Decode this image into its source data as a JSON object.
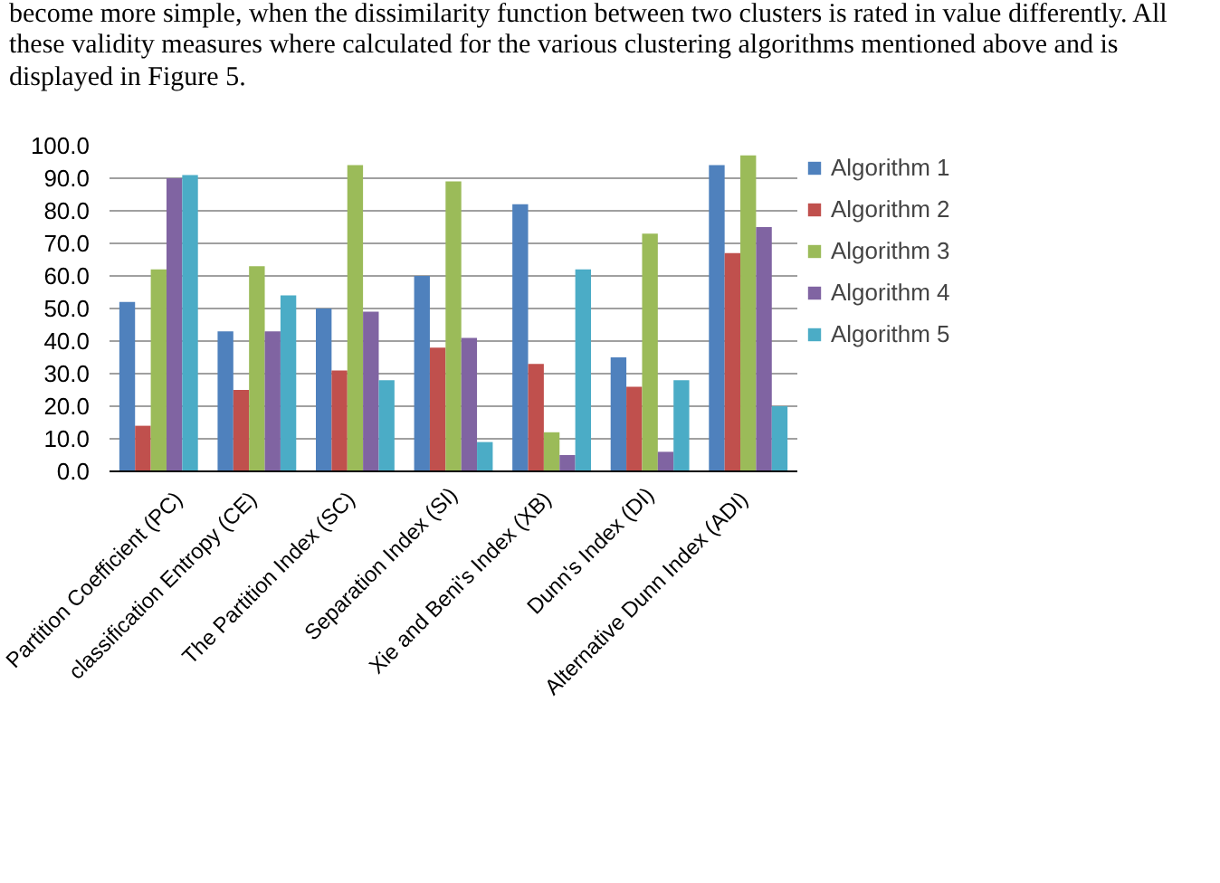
{
  "chart_data": {
    "type": "bar",
    "annotations": [
      "become more simple, when the dissimilarity function between two clusters is rated in value differently. All these validity measures where calculated for the various clustering algorithms mentioned above and is displayed in Figure 5."
    ],
    "categories": [
      "Partition Coefficient  (PC)",
      "classification Entropy  (CE)",
      "The Partition Index  (SC)",
      "Separation Index (SI)",
      "Xie and Beni's Index  (XB)",
      "Dunn's Index (DI)",
      "Alternative Dunn Index  (ADI)"
    ],
    "series": [
      {
        "name": "Algorithm 1",
        "color": "#4f81bd",
        "values": [
          52,
          43,
          50,
          60,
          82,
          35,
          94
        ]
      },
      {
        "name": "Algorithm 2",
        "color": "#c0504d",
        "values": [
          14,
          25,
          31,
          38,
          33,
          26,
          67
        ]
      },
      {
        "name": "Algorithm 3",
        "color": "#9bbb59",
        "values": [
          62,
          63,
          94,
          89,
          12,
          73,
          97
        ]
      },
      {
        "name": "Algorithm 4",
        "color": "#8064a2",
        "values": [
          90,
          43,
          49,
          41,
          5,
          6,
          75
        ]
      },
      {
        "name": "Algorithm 5",
        "color": "#4bacc6",
        "values": [
          91,
          54,
          28,
          9,
          62,
          28,
          20
        ]
      }
    ],
    "ylim": [
      0,
      100
    ],
    "yticks": [
      {
        "value": 0,
        "label": "0.0"
      },
      {
        "value": 10,
        "label": "10.0"
      },
      {
        "value": 20,
        "label": "20.0"
      },
      {
        "value": 30,
        "label": "30.0"
      },
      {
        "value": 40,
        "label": "40.0"
      },
      {
        "value": 50,
        "label": "50.0"
      },
      {
        "value": 60,
        "label": "60.0"
      },
      {
        "value": 70,
        "label": "70.0"
      },
      {
        "value": 80,
        "label": "80.0"
      },
      {
        "value": 90,
        "label": "90.0"
      },
      {
        "value": 100,
        "label": "100.0"
      }
    ],
    "grid": "y",
    "legend": "right"
  }
}
